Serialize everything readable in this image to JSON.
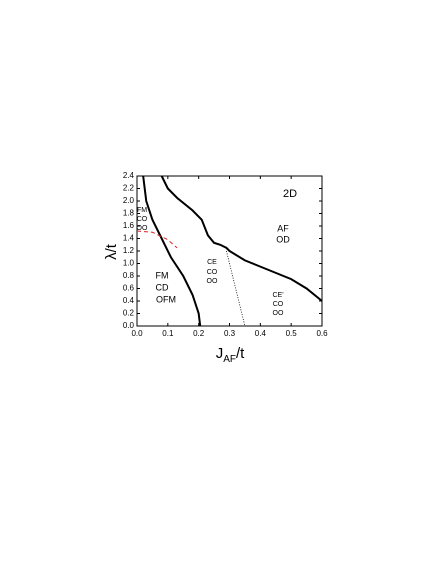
{
  "chart_data": {
    "type": "line",
    "xlabel": [
      "J",
      "AF",
      "/t"
    ],
    "ylabel": "λ/t",
    "xlim": [
      0,
      0.6
    ],
    "ylim": [
      0,
      2.4
    ],
    "xticks": [
      {
        "value": 0,
        "label": "0.0"
      },
      0.1,
      0.2,
      0.3,
      0.4,
      0.5,
      0.6
    ],
    "yticks": [
      {
        "value": 0,
        "label": "0.0"
      },
      0.2,
      0.4,
      0.6,
      0.8,
      {
        "value": 1,
        "label": "1.0"
      },
      1.2,
      1.4,
      1.6,
      1.8,
      {
        "value": 2,
        "label": "2.0"
      },
      2.2,
      2.4
    ],
    "annotations": [
      "2D",
      "AF",
      "OD",
      "FM",
      "CO",
      "OO",
      "CE",
      "CO",
      "OO",
      "FM",
      "CD",
      "OFM",
      "CE'",
      "CO",
      "OO"
    ],
    "series": [
      {
        "color": "#000000",
        "style": "solid",
        "x": [
          0.02,
          0.03,
          0.05,
          0.08,
          0.11,
          0.15,
          0.18,
          0.2,
          0.205
        ],
        "values": [
          2.4,
          2.0,
          1.7,
          1.4,
          1.1,
          0.8,
          0.5,
          0.2,
          0
        ]
      },
      {
        "color": "#000000",
        "style": "solid",
        "x": [
          0.08,
          0.1,
          0.13,
          0.18,
          0.21,
          0.23,
          0.25,
          0.27,
          0.29,
          0.3,
          0.35,
          0.4,
          0.5,
          0.55,
          0.6
        ],
        "values": [
          2.4,
          2.2,
          2.05,
          1.85,
          1.7,
          1.45,
          1.33,
          1.3,
          1.25,
          1.2,
          1.05,
          0.95,
          0.75,
          0.6,
          0.4
        ]
      },
      {
        "color": "#000000",
        "style": "dotted",
        "x": [
          0.29,
          0.3,
          0.32,
          0.34,
          0.35
        ],
        "values": [
          1.2,
          1.0,
          0.6,
          0.2,
          0
        ]
      },
      {
        "color": "#e02020",
        "style": "dashed",
        "x": [
          0,
          0.05,
          0.1,
          0.13
        ],
        "values": [
          1.52,
          1.5,
          1.38,
          1.25
        ]
      }
    ]
  }
}
